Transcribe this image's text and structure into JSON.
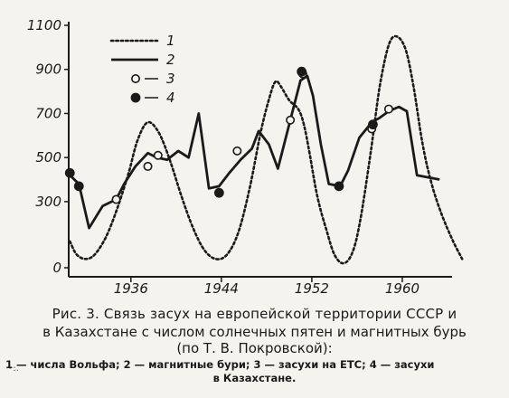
{
  "chart_data": {
    "type": "line",
    "title": "",
    "xlabel": "",
    "ylabel": "",
    "xlim": [
      1930.5,
      1966
    ],
    "ylim": [
      0,
      1100
    ],
    "x_ticks": [
      1936,
      1944,
      1952,
      1960
    ],
    "y_ticks": [
      0,
      300,
      500,
      700,
      900,
      1100
    ],
    "legend_placement": "top-center",
    "series": [
      {
        "name": "1",
        "style": "dotted",
        "points": [
          [
            1930.6,
            120
          ],
          [
            1931.2,
            60
          ],
          [
            1932,
            40
          ],
          [
            1932.8,
            60
          ],
          [
            1933.8,
            140
          ],
          [
            1934.8,
            270
          ],
          [
            1935.8,
            430
          ],
          [
            1936.6,
            580
          ],
          [
            1937.5,
            660
          ],
          [
            1938.5,
            610
          ],
          [
            1939.5,
            480
          ],
          [
            1940.5,
            320
          ],
          [
            1941.5,
            180
          ],
          [
            1942.5,
            80
          ],
          [
            1943.5,
            40
          ],
          [
            1944.5,
            60
          ],
          [
            1945.5,
            160
          ],
          [
            1946.5,
            360
          ],
          [
            1947.5,
            620
          ],
          [
            1948.3,
            780
          ],
          [
            1948.8,
            845
          ],
          [
            1949.3,
            820
          ],
          [
            1950,
            760
          ],
          [
            1950.8,
            720
          ],
          [
            1951.3,
            650
          ],
          [
            1951.8,
            520
          ],
          [
            1952.5,
            320
          ],
          [
            1953.3,
            170
          ],
          [
            1954,
            60
          ],
          [
            1954.8,
            20
          ],
          [
            1955.6,
            70
          ],
          [
            1956.3,
            220
          ],
          [
            1957.2,
            520
          ],
          [
            1958,
            820
          ],
          [
            1958.8,
            1010
          ],
          [
            1959.5,
            1050
          ],
          [
            1960.3,
            990
          ],
          [
            1961,
            820
          ],
          [
            1961.8,
            560
          ],
          [
            1962.6,
            380
          ],
          [
            1963.5,
            240
          ],
          [
            1964.5,
            120
          ],
          [
            1965.3,
            40
          ]
        ]
      },
      {
        "name": "2",
        "style": "solid",
        "points": [
          [
            1930.6,
            420
          ],
          [
            1931.4,
            380
          ],
          [
            1932.3,
            180
          ],
          [
            1933.5,
            280
          ],
          [
            1934.7,
            310
          ],
          [
            1935.4,
            380
          ],
          [
            1936.4,
            460
          ],
          [
            1937.5,
            520
          ],
          [
            1938.3,
            500
          ],
          [
            1939.2,
            490
          ],
          [
            1940.2,
            530
          ],
          [
            1941.1,
            500
          ],
          [
            1942,
            700
          ],
          [
            1942.9,
            360
          ],
          [
            1943.8,
            370
          ],
          [
            1944.7,
            430
          ],
          [
            1945.7,
            490
          ],
          [
            1946.7,
            540
          ],
          [
            1947.3,
            620
          ],
          [
            1948.2,
            560
          ],
          [
            1949,
            450
          ],
          [
            1950.1,
            670
          ],
          [
            1951,
            850
          ],
          [
            1951.6,
            870
          ],
          [
            1952.1,
            780
          ],
          [
            1952.8,
            560
          ],
          [
            1953.5,
            380
          ],
          [
            1954.5,
            370
          ],
          [
            1955.2,
            440
          ],
          [
            1956.2,
            590
          ],
          [
            1957.3,
            660
          ],
          [
            1958,
            680
          ],
          [
            1958.8,
            710
          ],
          [
            1959.7,
            730
          ],
          [
            1960.4,
            710
          ],
          [
            1961.3,
            420
          ],
          [
            1962.3,
            410
          ],
          [
            1963.3,
            400
          ]
        ]
      },
      {
        "name": "3",
        "marker": "open-circle",
        "points": [
          [
            1934.7,
            310
          ],
          [
            1937.5,
            460
          ],
          [
            1938.4,
            510
          ],
          [
            1945.4,
            530
          ],
          [
            1950.1,
            670
          ],
          [
            1951.2,
            880
          ],
          [
            1957.3,
            630
          ],
          [
            1958.8,
            720
          ]
        ]
      },
      {
        "name": "4",
        "marker": "filled-circle",
        "points": [
          [
            1930.6,
            430
          ],
          [
            1931.4,
            370
          ],
          [
            1943.8,
            340
          ],
          [
            1951.1,
            890
          ],
          [
            1954.4,
            370
          ],
          [
            1957.4,
            650
          ]
        ]
      }
    ]
  },
  "caption": {
    "line1": "Рис. 3. Связь засух на европейской территории СССР и",
    "line2": "в Казахстане с числом солнечных пятен и магнитных бурь",
    "line3": "(по Т. В. Покровской):",
    "line4": "1 — числа Вольфа; 2 — магнитные бури; 3 — засухи на ЕТС; 4 — засухи",
    "line5": "в Казахстане.",
    "stray_mark": "~:."
  }
}
